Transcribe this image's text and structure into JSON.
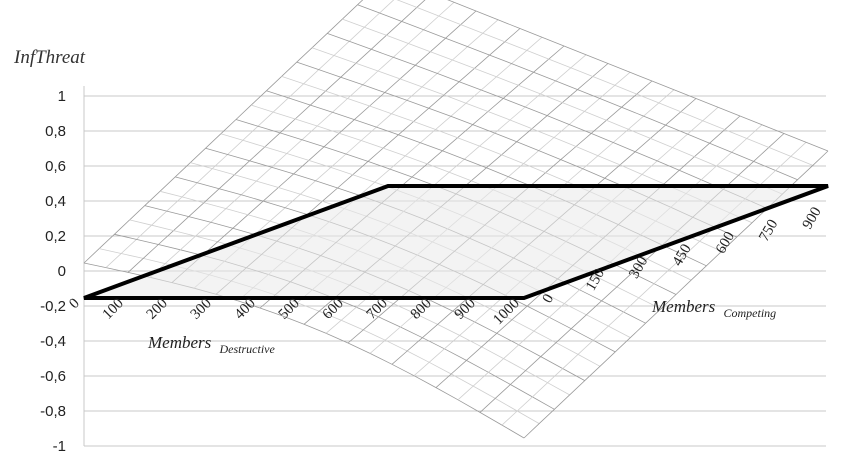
{
  "chart_data": {
    "type": "surface",
    "z_axis": {
      "label": "InfThreat",
      "ticks": [
        "1",
        "0,8",
        "0,6",
        "0,4",
        "0,2",
        "0",
        "-0,2",
        "-0,4",
        "-0,6",
        "-0,8",
        "-1"
      ],
      "range": [
        -1,
        1
      ]
    },
    "x_axis": {
      "label_main": "Members",
      "label_sub": "Destructive",
      "ticks": [
        "0",
        "100",
        "200",
        "300",
        "400",
        "500",
        "600",
        "700",
        "800",
        "900",
        "1000"
      ],
      "range": [
        0,
        1000
      ]
    },
    "y_axis": {
      "label_main": "Members",
      "label_sub": "Competing",
      "ticks": [
        "0",
        "150",
        "300",
        "450",
        "600",
        "750",
        "900"
      ],
      "range": [
        0,
        1000
      ]
    },
    "surface": {
      "description_of_shape_values": "InfThreat values on a grid of Destructive x Competing members",
      "x": [
        0,
        100,
        200,
        300,
        400,
        500,
        600,
        700,
        800,
        900,
        1000
      ],
      "y": [
        0,
        100,
        200,
        300,
        400,
        500,
        600,
        700,
        800,
        900,
        1000
      ],
      "z_at_max_competing_min_destructive": 1.0,
      "z_at_zero": 0.0,
      "z_at_min_competing_max_destructive": -1.0
    },
    "highlight_plane": {
      "z": -0.2
    },
    "colors": {
      "mesh": "#9a9a9a",
      "floor_outline": "#000000",
      "grid": "#c8c8c8"
    }
  }
}
